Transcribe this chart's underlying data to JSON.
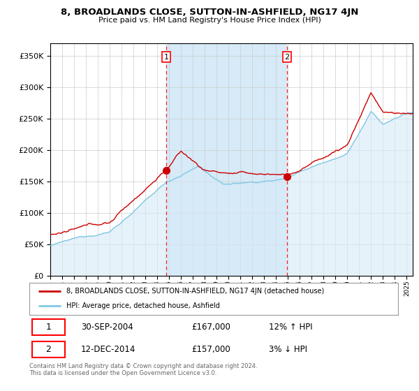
{
  "title": "8, BROADLANDS CLOSE, SUTTON-IN-ASHFIELD, NG17 4JN",
  "subtitle": "Price paid vs. HM Land Registry's House Price Index (HPI)",
  "ylim": [
    0,
    370000
  ],
  "xlim_start": 1995,
  "xlim_end": 2025.5,
  "legend_line1": "8, BROADLANDS CLOSE, SUTTON-IN-ASHFIELD, NG17 4JN (detached house)",
  "legend_line2": "HPI: Average price, detached house, Ashfield",
  "ann1_x": 2004.75,
  "ann1_y": 167000,
  "ann2_x": 2014.92,
  "ann2_y": 157000,
  "ann1_label": "1",
  "ann2_label": "2",
  "ann1_date": "30-SEP-2004",
  "ann1_price": "£167,000",
  "ann1_hpi": "12% ↑ HPI",
  "ann2_date": "12-DEC-2014",
  "ann2_price": "£157,000",
  "ann2_hpi": "3% ↓ HPI",
  "footer": "Contains HM Land Registry data © Crown copyright and database right 2024.\nThis data is licensed under the Open Government Licence v3.0.",
  "hpi_color": "#7ec8e3",
  "hpi_fill": "#d6eaf8",
  "price_color": "#cc0000",
  "plot_bg": "#ffffff",
  "fig_bg": "#ffffff",
  "shade_x1": 2004.75,
  "shade_x2": 2014.92
}
